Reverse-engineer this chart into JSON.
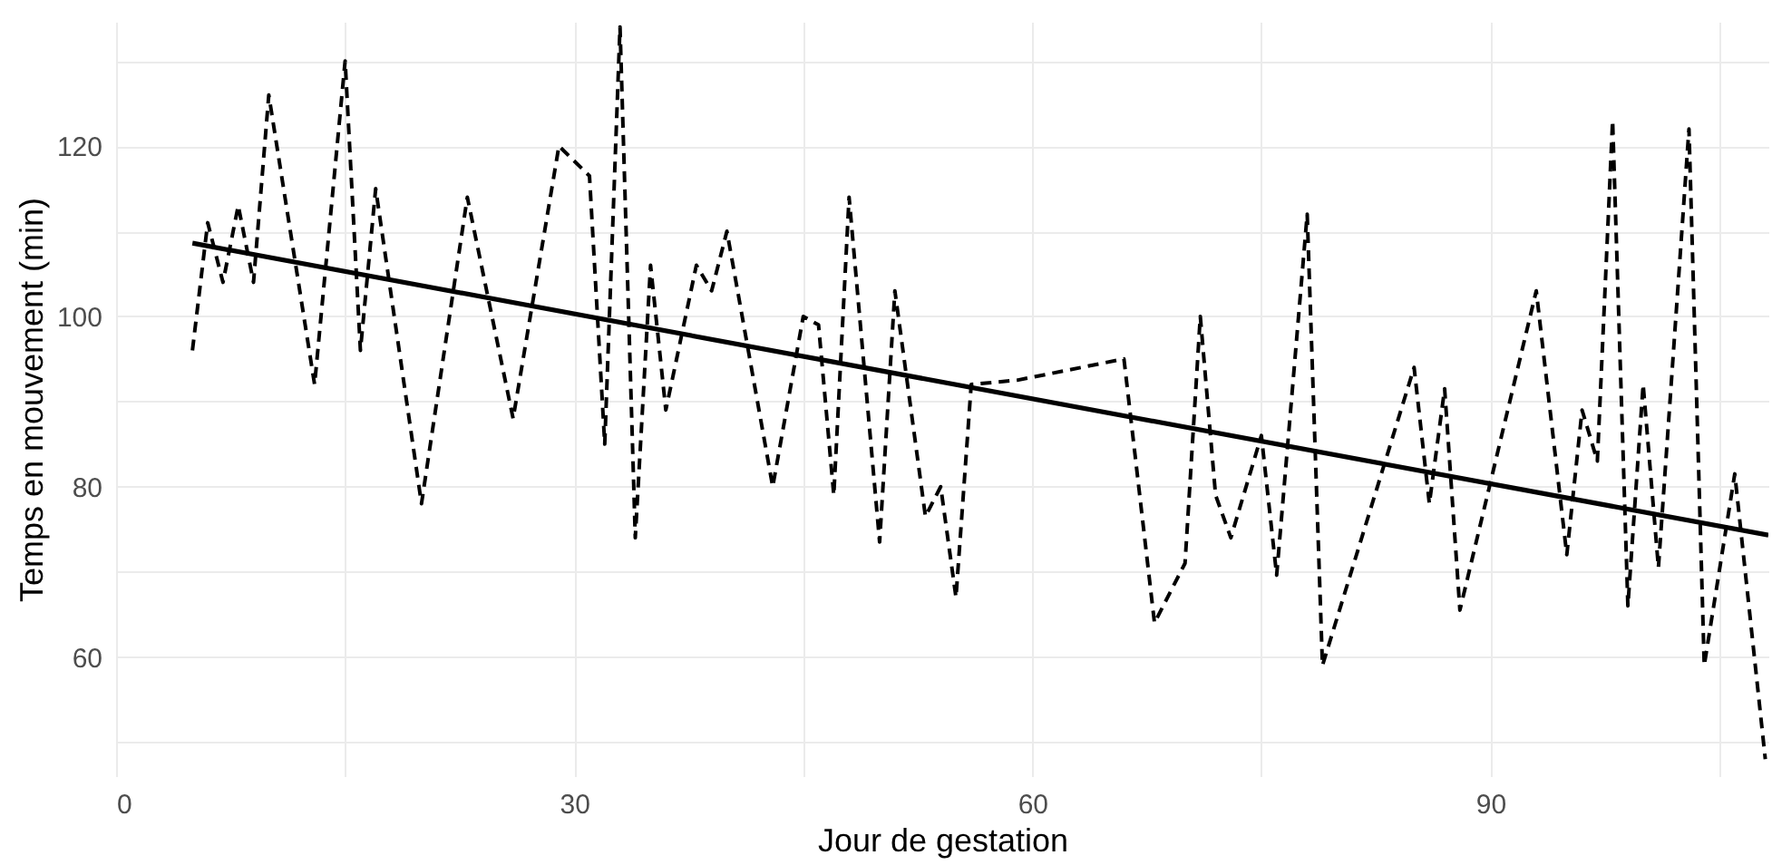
{
  "chart_data": {
    "type": "line",
    "xlabel": "Jour de gestation",
    "ylabel": "Temps en mouvement (min)",
    "xlim": [
      0,
      108.2
    ],
    "ylim": [
      46,
      134.6
    ],
    "xticks": [
      0,
      {
        "value": 15,
        "label": null
      },
      30,
      {
        "value": 45,
        "label": null
      },
      60,
      {
        "value": 75,
        "label": null
      },
      90,
      {
        "value": 105,
        "label": null
      }
    ],
    "yticks": [
      {
        "value": 50,
        "label": null
      },
      60,
      {
        "value": 70,
        "label": null
      },
      80,
      {
        "value": 90,
        "label": null
      },
      100,
      {
        "value": 110,
        "label": null
      },
      120,
      {
        "value": 130,
        "label": null
      }
    ],
    "grid": true,
    "marker": "none",
    "series": [
      {
        "color": "#000000",
        "line_style": "dashed",
        "x": [
          5,
          6,
          7,
          8,
          9,
          10,
          13,
          15,
          16,
          17,
          20,
          23,
          26,
          29,
          31,
          32,
          33,
          34,
          35,
          36,
          38,
          39,
          40,
          43,
          45,
          46,
          47,
          48,
          50,
          51,
          53,
          54,
          55,
          56,
          59,
          66,
          68,
          70,
          71,
          72,
          73,
          75,
          76,
          78,
          79,
          85,
          86,
          87,
          88,
          93,
          95,
          96,
          97,
          98,
          99,
          100,
          101,
          103,
          104,
          106,
          108
        ],
        "values": [
          96,
          111,
          104,
          113,
          104,
          126,
          92,
          130,
          96,
          115,
          78,
          114,
          88,
          120,
          116.5,
          85,
          134,
          74,
          106,
          89,
          106,
          103,
          110,
          80,
          100,
          99,
          79,
          114,
          73.5,
          103,
          76.5,
          80,
          67,
          92,
          92.5,
          95,
          64,
          71,
          100,
          79,
          74,
          86,
          69.6,
          112,
          59,
          94,
          78,
          91.5,
          65.5,
          103,
          72,
          89,
          83,
          123,
          66,
          92,
          70.5,
          122,
          59,
          81.5,
          48
        ]
      },
      {
        "color": "#000000",
        "line_style": "solid",
        "x": [
          5,
          108.2
        ],
        "values": [
          108.6,
          74.3
        ]
      }
    ]
  }
}
